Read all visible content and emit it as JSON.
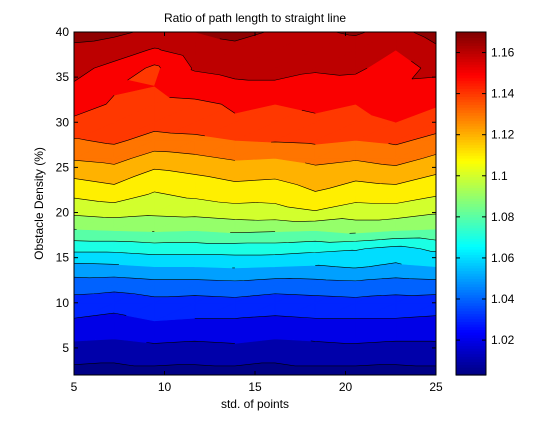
{
  "chart_data": {
    "type": "contour",
    "title": "Ratio of path length to straight line",
    "xlabel": "std. of points",
    "ylabel": "Obstacle Density (%)",
    "xlim": [
      5,
      25
    ],
    "ylim": [
      2,
      40
    ],
    "x_ticks": [
      5,
      10,
      15,
      20,
      25
    ],
    "y_ticks": [
      5,
      10,
      15,
      20,
      25,
      30,
      35,
      40
    ],
    "colorbar": {
      "colormap": "jet",
      "range": [
        1.003,
        1.17
      ],
      "ticks": [
        1.02,
        1.04,
        1.06,
        1.08,
        1.1,
        1.12,
        1.14,
        1.16
      ],
      "tick_labels": [
        "1.02",
        "1.04",
        "1.06",
        "1.08",
        "1.1",
        "1.12",
        "1.14",
        "1.16"
      ]
    },
    "contour_levels": [
      1.005,
      1.015,
      1.025,
      1.035,
      1.045,
      1.055,
      1.065,
      1.075,
      1.085,
      1.095,
      1.105,
      1.115,
      1.125,
      1.135,
      1.145,
      1.155,
      1.165
    ],
    "x": [
      5,
      7.22,
      9.44,
      11.67,
      13.89,
      16.11,
      18.33,
      20.56,
      22.78,
      25
    ],
    "y": [
      2,
      4,
      6,
      8,
      10,
      12,
      14,
      16,
      18,
      20,
      22,
      24,
      26,
      28,
      30,
      32,
      34,
      36,
      38,
      40
    ],
    "z": [
      [
        1.001,
        1.001,
        1.001,
        1.001,
        1.001,
        1.001,
        1.001,
        1.001,
        1.001,
        1.001
      ],
      [
        1.008,
        1.007,
        1.009,
        1.008,
        1.009,
        1.007,
        1.009,
        1.009,
        1.008,
        1.009
      ],
      [
        1.016,
        1.015,
        1.017,
        1.016,
        1.017,
        1.015,
        1.016,
        1.017,
        1.016,
        1.016
      ],
      [
        1.024,
        1.022,
        1.025,
        1.024,
        1.024,
        1.023,
        1.024,
        1.024,
        1.024,
        1.023
      ],
      [
        1.031,
        1.029,
        1.032,
        1.031,
        1.032,
        1.03,
        1.031,
        1.032,
        1.031,
        1.03
      ],
      [
        1.04,
        1.039,
        1.041,
        1.041,
        1.042,
        1.04,
        1.041,
        1.042,
        1.04,
        1.041
      ],
      [
        1.052,
        1.053,
        1.055,
        1.055,
        1.056,
        1.055,
        1.054,
        1.056,
        1.053,
        1.055
      ],
      [
        1.068,
        1.068,
        1.07,
        1.07,
        1.07,
        1.07,
        1.068,
        1.066,
        1.062,
        1.067
      ],
      [
        1.084,
        1.085,
        1.086,
        1.085,
        1.087,
        1.086,
        1.085,
        1.088,
        1.085,
        1.084
      ],
      [
        1.097,
        1.099,
        1.097,
        1.098,
        1.1,
        1.101,
        1.104,
        1.1,
        1.1,
        1.096
      ],
      [
        1.107,
        1.11,
        1.104,
        1.107,
        1.11,
        1.109,
        1.114,
        1.109,
        1.11,
        1.106
      ],
      [
        1.116,
        1.119,
        1.111,
        1.114,
        1.117,
        1.116,
        1.12,
        1.117,
        1.119,
        1.114
      ],
      [
        1.126,
        1.128,
        1.121,
        1.123,
        1.126,
        1.125,
        1.128,
        1.126,
        1.129,
        1.123
      ],
      [
        1.134,
        1.137,
        1.131,
        1.132,
        1.135,
        1.136,
        1.137,
        1.135,
        1.137,
        1.132
      ],
      [
        1.143,
        1.144,
        1.139,
        1.141,
        1.144,
        1.143,
        1.144,
        1.143,
        1.145,
        1.14
      ],
      [
        1.149,
        1.144,
        1.142,
        1.143,
        1.146,
        1.145,
        1.146,
        1.145,
        1.148,
        1.146
      ],
      [
        1.154,
        1.146,
        1.145,
        1.15,
        1.153,
        1.153,
        1.152,
        1.151,
        1.153,
        1.152
      ],
      [
        1.158,
        1.152,
        1.143,
        1.156,
        1.158,
        1.159,
        1.156,
        1.157,
        1.15,
        1.158
      ],
      [
        1.163,
        1.16,
        1.154,
        1.16,
        1.162,
        1.162,
        1.16,
        1.161,
        1.155,
        1.163
      ],
      [
        1.168,
        1.167,
        1.163,
        1.165,
        1.168,
        1.164,
        1.164,
        1.166,
        1.162,
        1.169
      ]
    ]
  }
}
